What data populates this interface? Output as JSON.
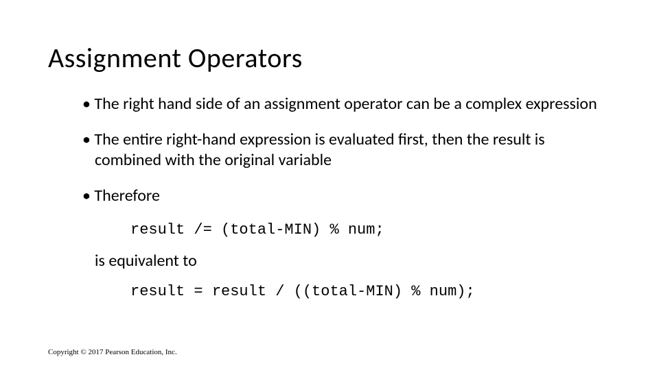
{
  "title": "Assignment Operators",
  "bullets": {
    "b1": "The right hand side of an assignment operator can be a complex expression",
    "b2": "The entire right-hand expression is evaluated first, then the result is combined with the original variable",
    "b3": "Therefore"
  },
  "code1": "result /= (total-MIN) % num;",
  "sub1": "is equivalent to",
  "code2": "result = result / ((total-MIN) % num);",
  "footer": "Copyright © 2017 Pearson Education, Inc."
}
